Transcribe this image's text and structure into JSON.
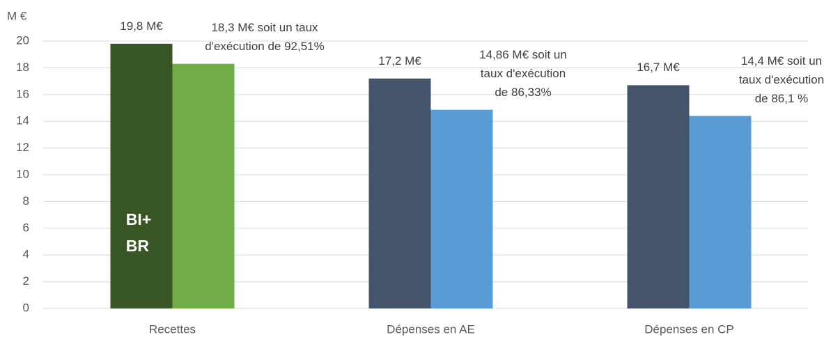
{
  "chart_data": {
    "type": "bar",
    "y_axis_label": "M €",
    "categories": [
      "Recettes",
      "Dépenses en AE",
      "Dépenses en CP"
    ],
    "series": [
      {
        "colors": [
          "#375623",
          "#44546a",
          "#44546a"
        ],
        "values": [
          19.8,
          17.2,
          16.7
        ],
        "value_labels": [
          "19,8 M€",
          "17,2 M€",
          "16,7 M€"
        ]
      },
      {
        "colors": [
          "#70ad47",
          "#5b9bd5",
          "#5b9bd5"
        ],
        "values": [
          18.3,
          14.86,
          14.4
        ],
        "value_labels": [
          "18,3 M€ soit un taux\nd'exécution de 92,51%",
          "14,86 M€ soit un\ntaux d'exécution\nde 86,33%",
          "14,4 M€ soit un\ntaux d'exécution\nde 86,1 %"
        ]
      }
    ],
    "annotations": [
      {
        "text": "BI+\nBR"
      }
    ],
    "ylim": [
      0,
      20
    ],
    "yticks": [
      0,
      2,
      4,
      6,
      8,
      10,
      12,
      14,
      16,
      18,
      20
    ],
    "grid": true
  }
}
